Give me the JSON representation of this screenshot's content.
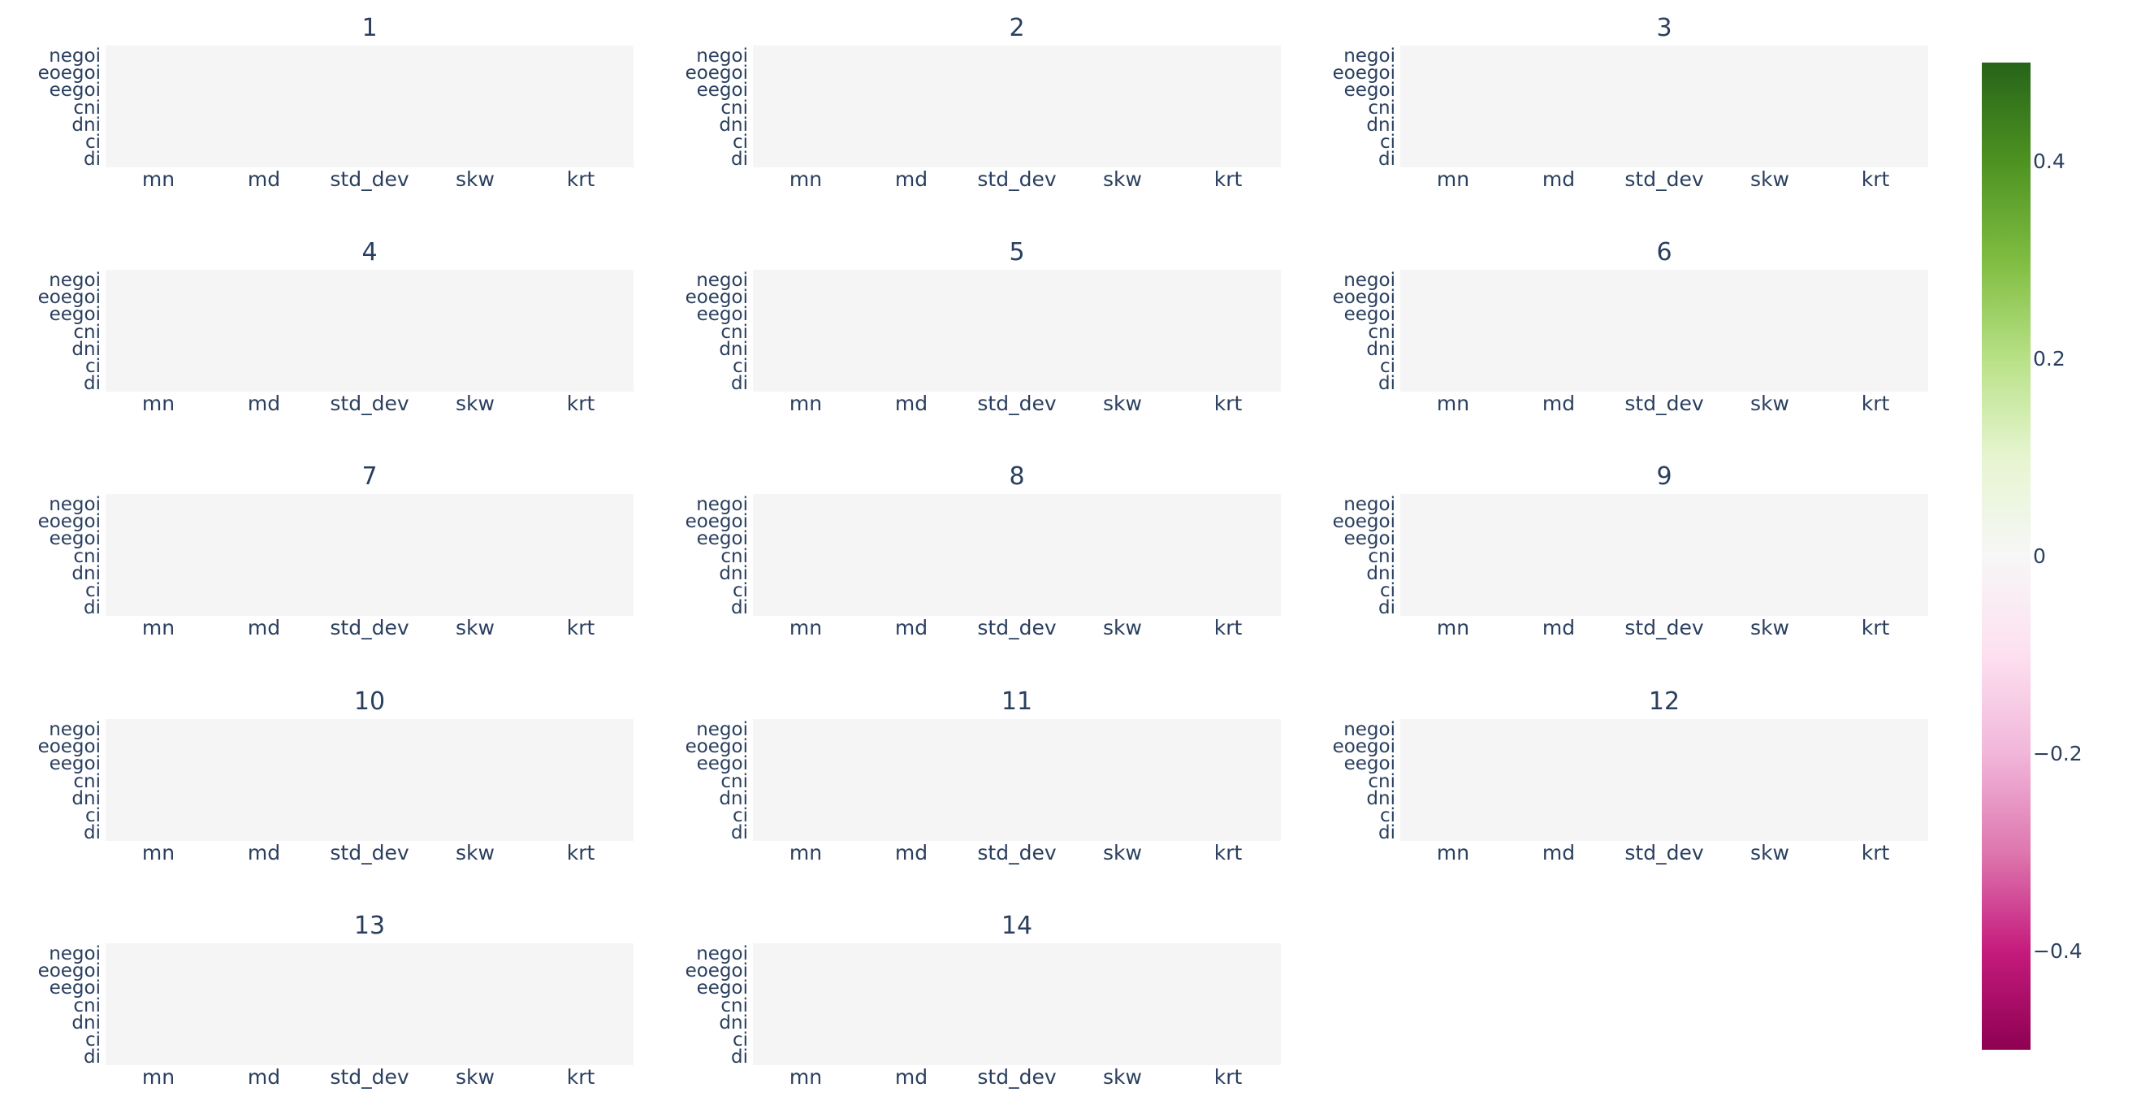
{
  "chart_data": {
    "type": "heatmap",
    "subplot_titles": [
      "1",
      "2",
      "3",
      "4",
      "5",
      "6",
      "7",
      "8",
      "9",
      "10",
      "11",
      "12",
      "13",
      "14"
    ],
    "x_categories": [
      "mn",
      "md",
      "std_dev",
      "skw",
      "krt"
    ],
    "y_categories": [
      "di",
      "ci",
      "dni",
      "cni",
      "eegoi",
      "eoegoi",
      "negoi"
    ],
    "values": "none visible (empty heatmap cells)",
    "colorscale": {
      "name": "PiYG",
      "range": [
        -0.5,
        0.5
      ],
      "ticks": [
        "0.4",
        "0.2",
        "0",
        "−0.2",
        "−0.4"
      ],
      "colors": [
        "#8e0152",
        "#c51b7d",
        "#de77ae",
        "#f1b6da",
        "#fde0ef",
        "#f7f7f7",
        "#e6f5d0",
        "#b8e186",
        "#7fbc41",
        "#4d9221",
        "#276419"
      ]
    },
    "grid": false,
    "legend_position": "colorbar right"
  }
}
